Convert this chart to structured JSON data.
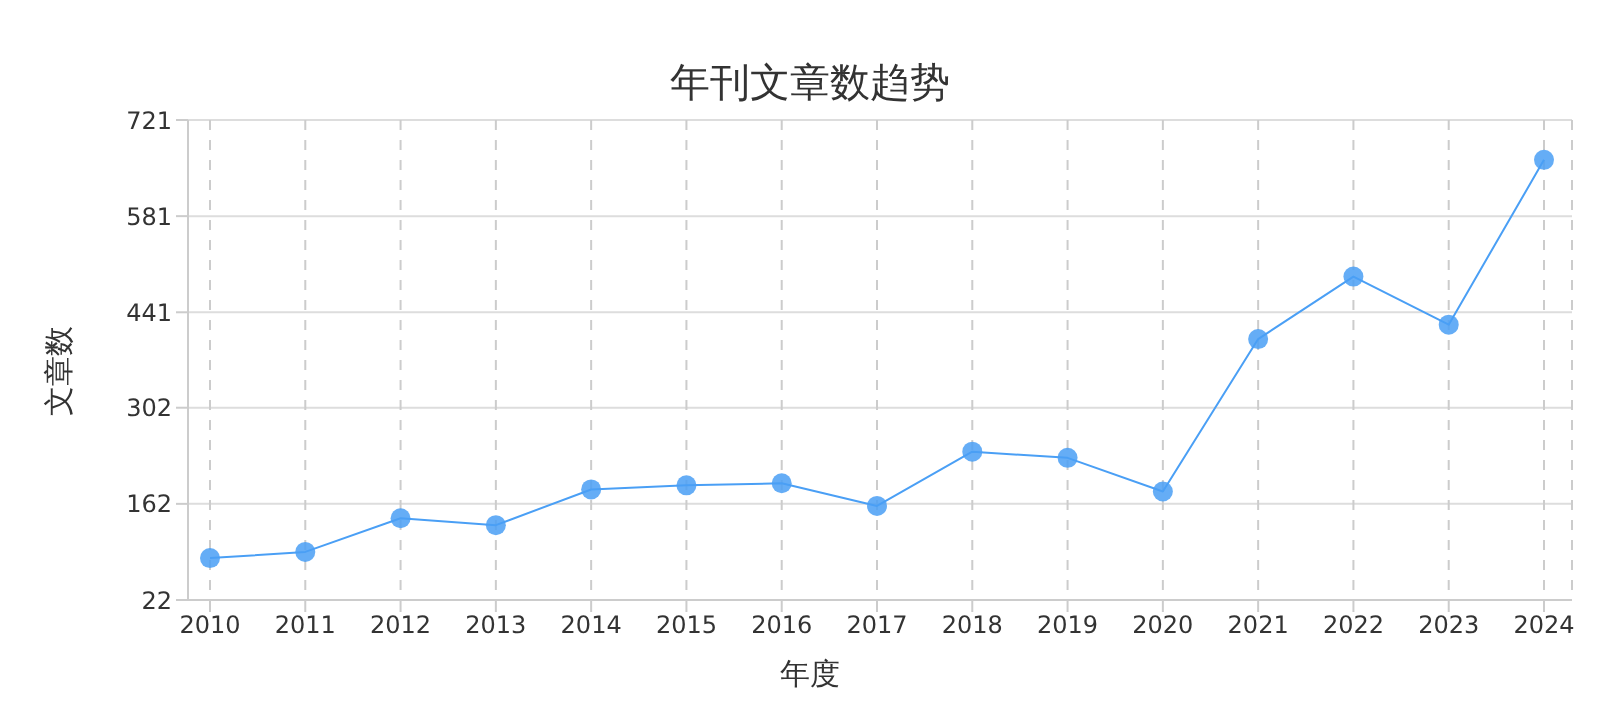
{
  "chart_data": {
    "type": "line",
    "title": "年刊文章数趋势",
    "xlabel": "年度",
    "ylabel": "文章数",
    "categories": [
      "2010",
      "2011",
      "2012",
      "2013",
      "2014",
      "2015",
      "2016",
      "2017",
      "2018",
      "2019",
      "2020",
      "2021",
      "2022",
      "2023",
      "2024"
    ],
    "series": [
      {
        "color": "#4a9ff5",
        "values": [
          83,
          92,
          141,
          131,
          183,
          189,
          192,
          159,
          238,
          229,
          180,
          402,
          493,
          423,
          663
        ]
      }
    ],
    "ylim": [
      22,
      721
    ],
    "yticks": [
      22,
      162,
      302,
      441,
      581,
      721
    ],
    "grid": true,
    "marker": "circle",
    "legend": false
  }
}
